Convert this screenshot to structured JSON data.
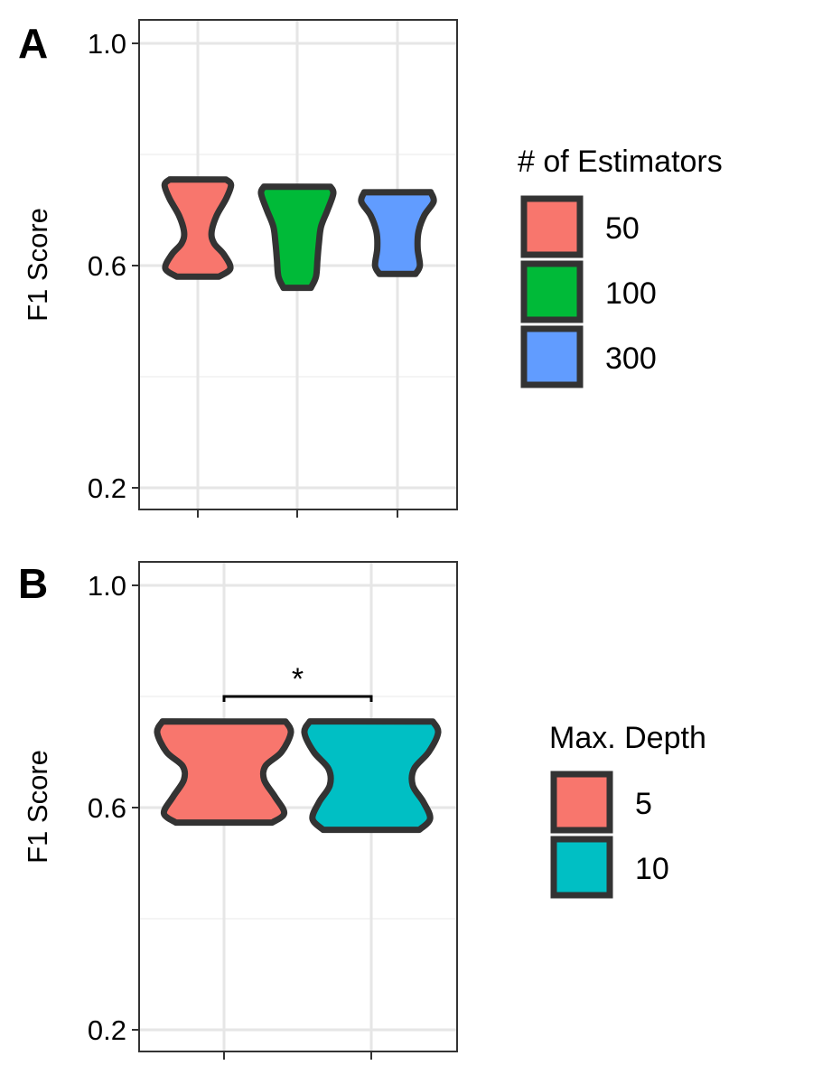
{
  "chart_data": [
    {
      "panel": "A",
      "type": "violin",
      "ylabel": "F1 Score",
      "ylim": [
        0.15,
        1.03
      ],
      "yticks": [
        {
          "value": 0.2,
          "label": "0.2"
        },
        {
          "value": 0.6,
          "label": "0.6"
        },
        {
          "value": 1.0,
          "label": "1.0"
        }
      ],
      "grid": true,
      "legend_title": "# of Estimators",
      "legend_position": "right",
      "series": [
        {
          "name": "50",
          "color": "#F8766D",
          "min": 0.58,
          "max": 0.755,
          "profile": [
            [
              0.58,
              0.58
            ],
            [
              0.595,
              0.9
            ],
            [
              0.62,
              0.72
            ],
            [
              0.64,
              0.45
            ],
            [
              0.66,
              0.38
            ],
            [
              0.69,
              0.52
            ],
            [
              0.72,
              0.78
            ],
            [
              0.745,
              0.92
            ],
            [
              0.755,
              0.78
            ]
          ]
        },
        {
          "name": "100",
          "color": "#00BA38",
          "min": 0.56,
          "max": 0.742,
          "profile": [
            [
              0.56,
              0.38
            ],
            [
              0.58,
              0.52
            ],
            [
              0.61,
              0.56
            ],
            [
              0.64,
              0.6
            ],
            [
              0.67,
              0.66
            ],
            [
              0.7,
              0.84
            ],
            [
              0.73,
              1.0
            ],
            [
              0.742,
              0.92
            ]
          ]
        },
        {
          "name": "300",
          "color": "#619CFF",
          "min": 0.585,
          "max": 0.732,
          "profile": [
            [
              0.585,
              0.5
            ],
            [
              0.6,
              0.62
            ],
            [
              0.63,
              0.56
            ],
            [
              0.66,
              0.58
            ],
            [
              0.69,
              0.74
            ],
            [
              0.715,
              1.0
            ],
            [
              0.732,
              0.92
            ]
          ]
        }
      ]
    },
    {
      "panel": "B",
      "type": "violin",
      "ylabel": "F1 Score",
      "ylim": [
        0.15,
        1.03
      ],
      "yticks": [
        {
          "value": 0.2,
          "label": "0.2"
        },
        {
          "value": 0.6,
          "label": "0.6"
        },
        {
          "value": 1.0,
          "label": "1.0"
        }
      ],
      "grid": true,
      "legend_title": "Max. Depth",
      "legend_position": "right",
      "annotation": {
        "text": "*",
        "from": "5",
        "to": "10",
        "y": 0.8
      },
      "series": [
        {
          "name": "5",
          "color": "#F8766D",
          "min": 0.573,
          "max": 0.755,
          "profile": [
            [
              0.573,
              0.72
            ],
            [
              0.59,
              0.9
            ],
            [
              0.62,
              0.76
            ],
            [
              0.65,
              0.6
            ],
            [
              0.675,
              0.62
            ],
            [
              0.7,
              0.86
            ],
            [
              0.735,
              1.0
            ],
            [
              0.755,
              0.92
            ]
          ]
        },
        {
          "name": "10",
          "color": "#00BFC4",
          "min": 0.56,
          "max": 0.755,
          "profile": [
            [
              0.56,
              0.72
            ],
            [
              0.58,
              0.88
            ],
            [
              0.61,
              0.78
            ],
            [
              0.64,
              0.62
            ],
            [
              0.67,
              0.64
            ],
            [
              0.7,
              0.86
            ],
            [
              0.735,
              1.0
            ],
            [
              0.755,
              0.92
            ]
          ]
        }
      ]
    }
  ]
}
